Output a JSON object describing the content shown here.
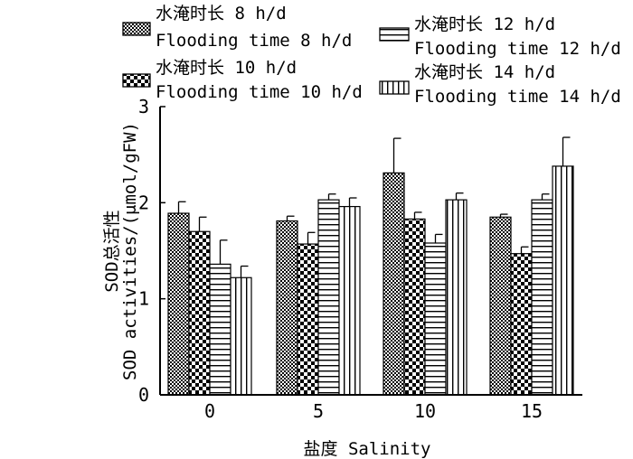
{
  "chart_data": {
    "type": "bar",
    "title": "",
    "xlabel": "盐度 Salinity",
    "ylabel_line1": "SOD总活性",
    "ylabel_line2": "SOD activities/(μmol/gFW)",
    "categories": [
      "0",
      "5",
      "10",
      "15"
    ],
    "ylim": [
      0,
      3
    ],
    "yticks": [
      "0",
      "1",
      "2",
      "3"
    ],
    "grid": false,
    "legend_position": "top",
    "series": [
      {
        "name_cn": "水淹时长 8 h/d",
        "name_en": "Flooding time 8 h/d",
        "pattern": "crosshatch",
        "values": [
          1.89,
          1.81,
          2.31,
          1.85
        ],
        "errors": [
          0.12,
          0.05,
          0.36,
          0.03
        ]
      },
      {
        "name_cn": "水淹时长 10 h/d",
        "name_en": "Flooding time 10 h/d",
        "pattern": "checker",
        "values": [
          1.7,
          1.57,
          1.83,
          1.47
        ],
        "errors": [
          0.15,
          0.12,
          0.07,
          0.07
        ]
      },
      {
        "name_cn": "水淹时长 12 h/d",
        "name_en": "Flooding time 12 h/d",
        "pattern": "horizontal",
        "values": [
          1.36,
          2.03,
          1.58,
          2.03
        ],
        "errors": [
          0.25,
          0.06,
          0.09,
          0.06
        ]
      },
      {
        "name_cn": "水淹时长 14 h/d",
        "name_en": "Flooding time 14 h/d",
        "pattern": "vertical",
        "values": [
          1.22,
          1.96,
          2.03,
          2.38
        ],
        "errors": [
          0.12,
          0.09,
          0.07,
          0.3
        ]
      }
    ]
  }
}
